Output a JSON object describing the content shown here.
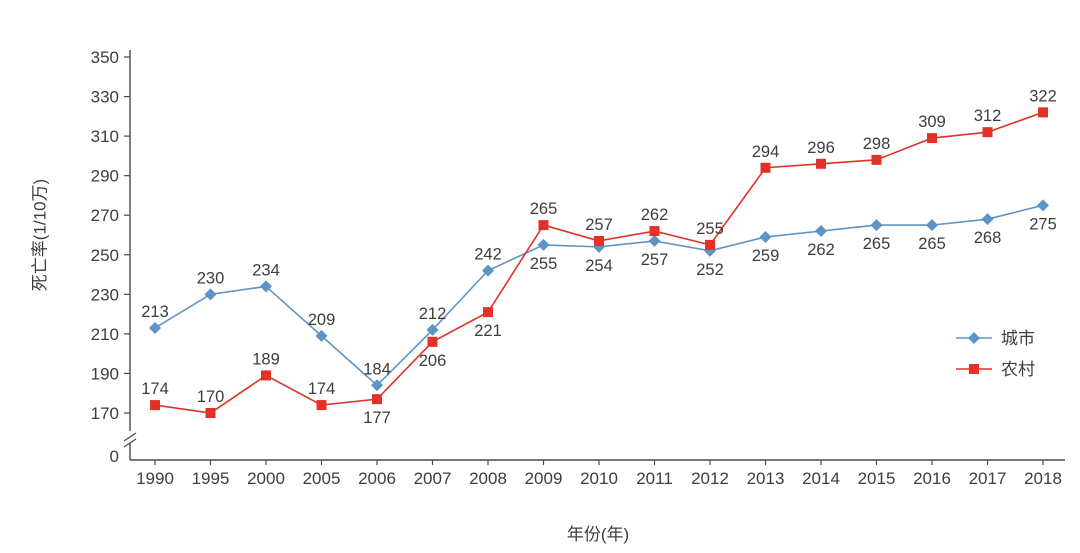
{
  "chart_data": {
    "type": "line",
    "title": "",
    "xlabel": "年份(年)",
    "ylabel": "死亡率(1/10万)",
    "x": [
      1990,
      1995,
      2000,
      2005,
      2006,
      2007,
      2008,
      2009,
      2010,
      2011,
      2012,
      2013,
      2014,
      2015,
      2016,
      2017,
      2018
    ],
    "series": [
      {
        "name": "城市",
        "color": "#5e94c4",
        "marker": "diamond",
        "values": [
          213,
          230,
          234,
          209,
          184,
          212,
          242,
          255,
          254,
          257,
          252,
          259,
          262,
          265,
          265,
          268,
          275
        ],
        "label_side": [
          "above",
          "above",
          "above",
          "above",
          "above",
          "above",
          "above",
          "below",
          "below",
          "below",
          "below",
          "below",
          "below",
          "below",
          "below",
          "below",
          "below"
        ]
      },
      {
        "name": "农村",
        "color": "#e03227",
        "marker": "square",
        "values": [
          174,
          170,
          189,
          174,
          177,
          206,
          221,
          265,
          257,
          262,
          255,
          294,
          296,
          298,
          309,
          312,
          322
        ],
        "label_side": [
          "above",
          "above",
          "above",
          "above",
          "below",
          "below",
          "below",
          "above",
          "above",
          "above",
          "above",
          "above",
          "above",
          "above",
          "above",
          "above",
          "above"
        ]
      }
    ],
    "yticks": [
      170,
      190,
      210,
      230,
      250,
      270,
      290,
      310,
      330,
      350
    ],
    "y_base_tick": "0",
    "ylim": [
      170,
      350
    ],
    "axis_break": true,
    "grid": false,
    "legend_position": "right",
    "text_color": "#3d3d3d",
    "axis_color": "#4a4a4a"
  }
}
